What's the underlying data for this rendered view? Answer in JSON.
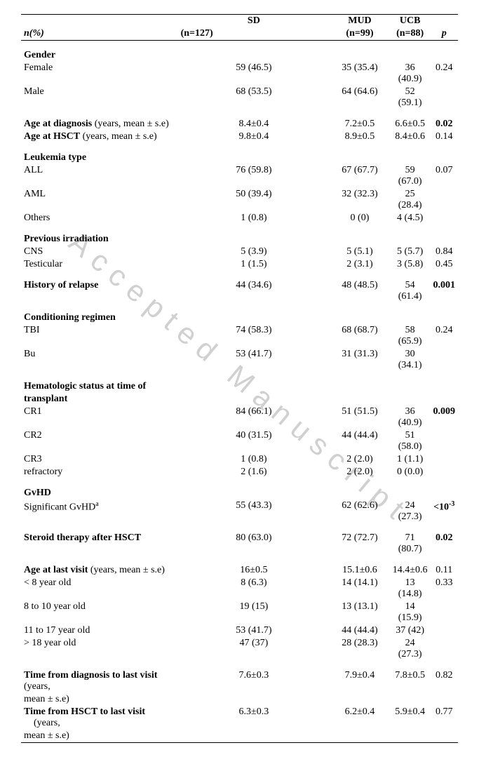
{
  "watermark": "Accepted Manuscript",
  "header": {
    "row_label": "n(%)",
    "sd_label": "SD",
    "sd_n": "(n=127)",
    "mud_label": "MUD",
    "mud_n": "(n=99)",
    "ucb_label": "UCB",
    "ucb_n": "(n=88)",
    "p_label": "p"
  },
  "sections": {
    "gender": {
      "title": "Gender",
      "female": {
        "label": "Female",
        "sd": "59 (46.5)",
        "mud": "35 (35.4)",
        "ucb": "36 (40.9)",
        "p": "0.24"
      },
      "male": {
        "label": "Male",
        "sd": "68 (53.5)",
        "mud": "64 (64.6)",
        "ucb": "52 (59.1)"
      }
    },
    "age_diag": {
      "label_bold": "Age at diagnosis",
      "label_rest": " (years, mean ± s.e)",
      "sd": "8.4±0.4",
      "mud": "7.2±0.5",
      "ucb": "6.6±0.5",
      "p": "0.02"
    },
    "age_hsct": {
      "label_bold": "Age at HSCT",
      "label_rest": " (years, mean ± s.e)",
      "sd": "9.8±0.4",
      "mud": "8.9±0.5",
      "ucb": "8.4±0.6",
      "p": "0.14"
    },
    "leukemia": {
      "title": "Leukemia type",
      "all": {
        "label": "ALL",
        "sd": "76 (59.8)",
        "mud": "67 (67.7)",
        "ucb": "59 (67.0)",
        "p": "0.07"
      },
      "aml": {
        "label": "AML",
        "sd": "50 (39.4)",
        "mud": "32 (32.3)",
        "ucb": "25 (28.4)"
      },
      "others": {
        "label": "Others",
        "sd": "1 (0.8)",
        "mud": "0 (0)",
        "ucb": "4 (4.5)"
      }
    },
    "irradiation": {
      "title": "Previous irradiation",
      "cns": {
        "label": "CNS",
        "sd": "5 (3.9)",
        "mud": "5 (5.1)",
        "ucb": "5 (5.7)",
        "p": "0.84"
      },
      "testicular": {
        "label": "Testicular",
        "sd": "1 (1.5)",
        "mud": "2 (3.1)",
        "ucb": "3 (5.8)",
        "p": "0.45"
      }
    },
    "relapse": {
      "label": "History of relapse",
      "sd": "44 (34.6)",
      "mud": "48 (48.5)",
      "ucb": "54 (61.4)",
      "p": "0.001"
    },
    "conditioning": {
      "title": "Conditioning regimen",
      "tbi": {
        "label": "TBI",
        "sd": "74 (58.3)",
        "mud": "68 (68.7)",
        "ucb": "58 (65.9)",
        "p": "0.24"
      },
      "bu": {
        "label": "Bu",
        "sd": "53 (41.7)",
        "mud": "31 (31.3)",
        "ucb": "30 (34.1)"
      }
    },
    "hematologic": {
      "title1": "Hematologic status at time of",
      "title2": "transplant",
      "cr1": {
        "label": "CR1",
        "sd": "84 (66.1)",
        "mud": "51 (51.5)",
        "ucb": "36 (40.9)",
        "p": "0.009"
      },
      "cr2": {
        "label": "CR2",
        "sd": "40 (31.5)",
        "mud": "44 (44.4)",
        "ucb": "51 (58.0)"
      },
      "cr3": {
        "label": "CR3",
        "sd": "1 (0.8)",
        "mud": "2 (2.0)",
        "ucb": "1 (1.1)"
      },
      "refractory": {
        "label": "refractory",
        "sd": "2 (1.6)",
        "mud": "2 (2.0)",
        "ucb": "0 (0.0)"
      }
    },
    "gvhd": {
      "title": "GvHD",
      "sig_label": "Significant GvHD",
      "sup": "a",
      "sd": "55 (43.3)",
      "mud": "62 (62.6)",
      "ucb": "24 (27.3)",
      "p1": "<10",
      "p_sup": "-3"
    },
    "steroid": {
      "label": "Steroid therapy after HSCT",
      "sd": "80 (63.0)",
      "mud": "72 (72.7)",
      "ucb": "71 (80.7)",
      "p": "0.02"
    },
    "age_last": {
      "label_bold": "Age at last visit",
      "label_rest": " (years, mean ± s.e)",
      "sd": "16±0.5",
      "mud": "15.1±0.6",
      "ucb": "14.4±0.6",
      "p": "0.11",
      "lt8": {
        "label": "< 8 year old",
        "sd": "8 (6.3)",
        "mud": "14 (14.1)",
        "ucb": "13 (14.8)",
        "p": "0.33"
      },
      "r8_10": {
        "label": "8 to 10 year old",
        "sd": "19 (15)",
        "mud": "13 (13.1)",
        "ucb": "14 (15.9)"
      },
      "r11_17": {
        "label": "11 to 17 year old",
        "sd": "53 (41.7)",
        "mud": "44 (44.4)",
        "ucb": "37 (42)"
      },
      "gt18": {
        "label": "> 18 year old",
        "sd": "47 (37)",
        "mud": "28 (28.3)",
        "ucb": "24 (27.3)"
      }
    },
    "time_diag": {
      "label_bold": "Time from diagnosis to last visit",
      "label_rest": " (years,",
      "label_rest2": "mean ± s.e)",
      "sd": "7.6±0.3",
      "mud": "7.9±0.4",
      "ucb": "7.8±0.5",
      "p": "0.82"
    },
    "time_hsct": {
      "label_bold": "Time from HSCT to last visit",
      "label_rest": "    (years,",
      "label_rest2": "mean ± s.e)",
      "sd": "6.3±0.3",
      "mud": "6.2±0.4",
      "ucb": "5.9±0.4",
      "p": "0.77"
    }
  }
}
